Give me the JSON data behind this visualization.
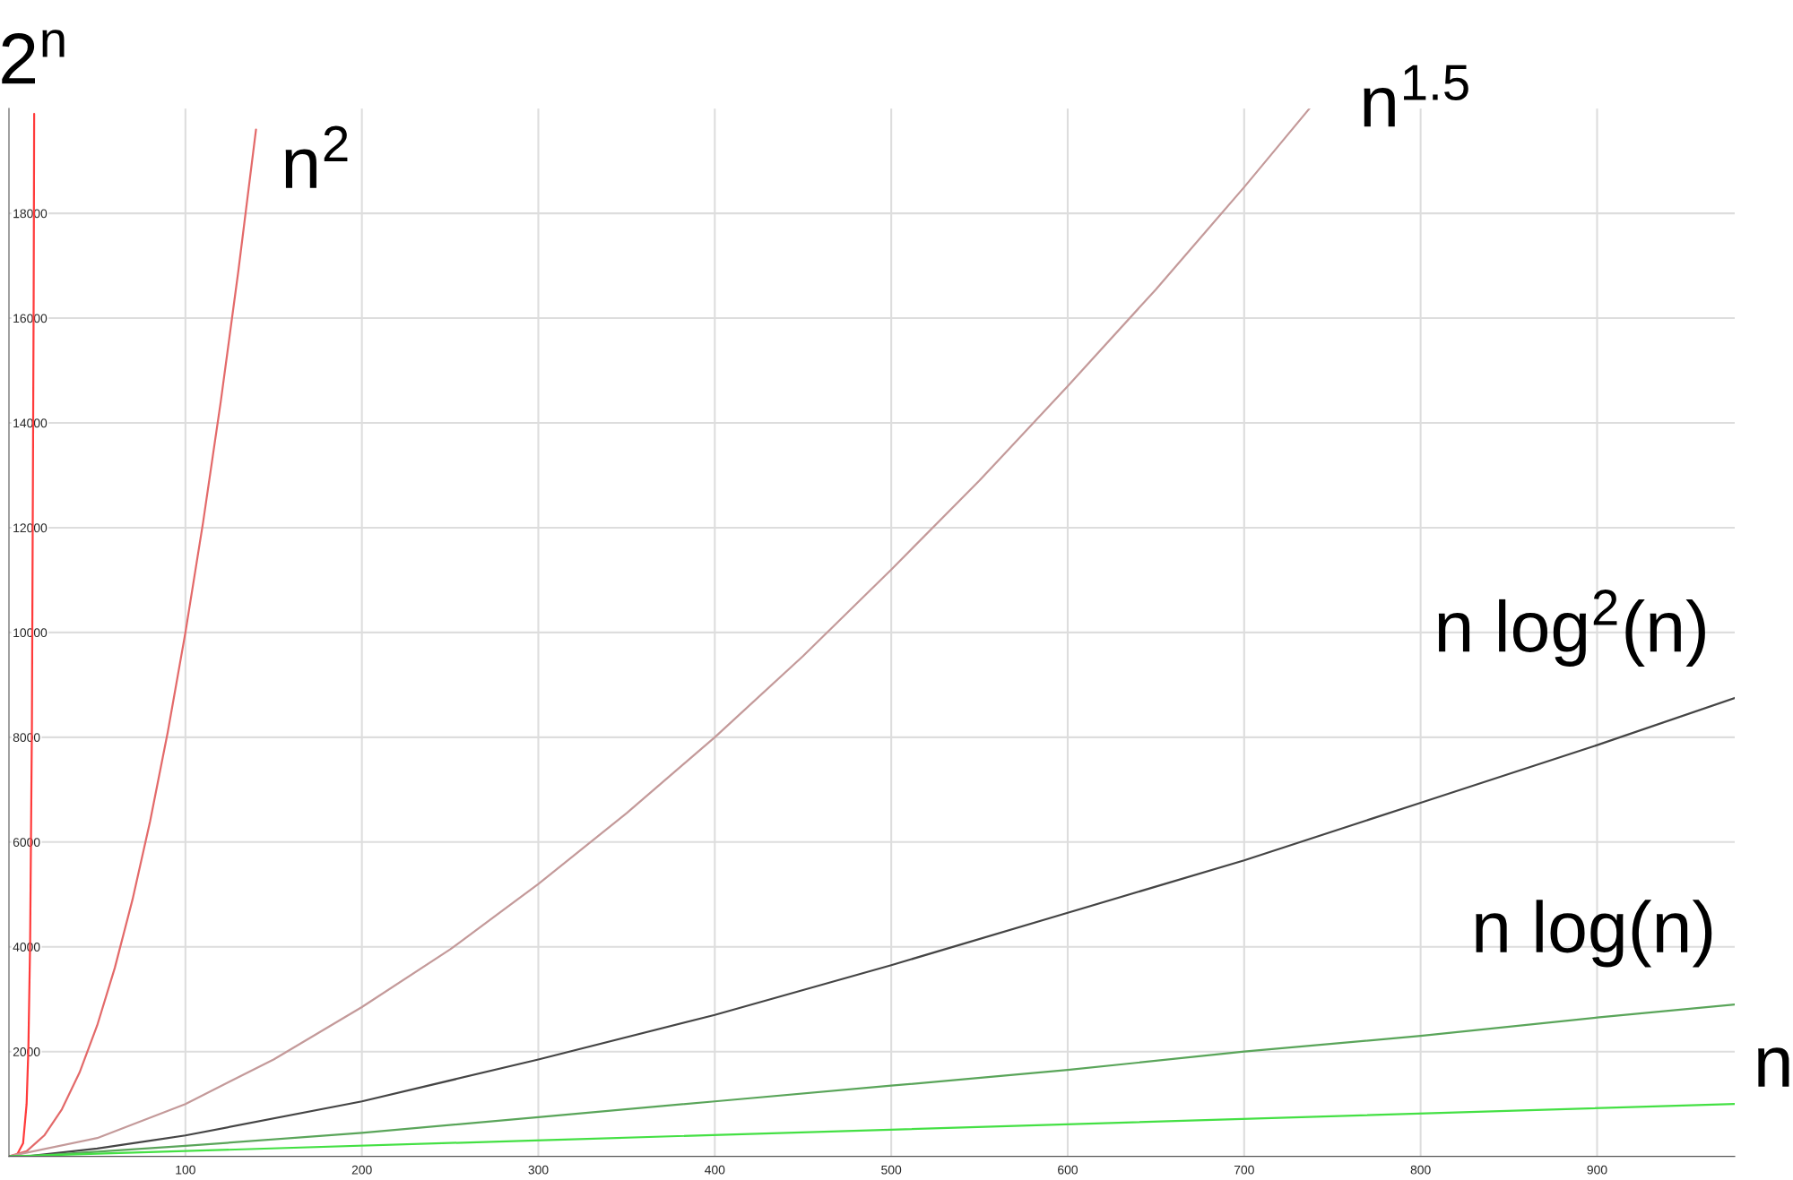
{
  "chart_data": {
    "type": "line",
    "xlim": [
      0,
      978
    ],
    "ylim": [
      0,
      20000
    ],
    "xticks": [
      100,
      200,
      300,
      400,
      500,
      600,
      700,
      800,
      900
    ],
    "yticks": [
      2000,
      4000,
      6000,
      8000,
      10000,
      12000,
      14000,
      16000,
      18000
    ],
    "grid": true,
    "legend": false,
    "marker": "none",
    "line_style": "solid",
    "series": [
      {
        "name": "2$^{n}$",
        "color": "#ff3b3b",
        "x": [
          0,
          4,
          8,
          10,
          11,
          12,
          13,
          14,
          14.28
        ],
        "values": [
          0,
          0,
          250,
          1000,
          2050,
          4100,
          8200,
          16400,
          19900
        ]
      },
      {
        "name": "n$^{2}$",
        "color": "#e36a6a",
        "x": [
          0,
          10,
          20,
          30,
          40,
          50,
          60,
          70,
          80,
          90,
          100,
          110,
          120,
          130,
          140
        ],
        "values": [
          0,
          100,
          400,
          900,
          1600,
          2500,
          3600,
          4900,
          6400,
          8100,
          10000,
          12100,
          14400,
          16900,
          19600
        ]
      },
      {
        "name": "n$^{1.5}$",
        "color": "#c49a9a",
        "x": [
          0,
          50,
          100,
          150,
          200,
          250,
          300,
          350,
          400,
          450,
          500,
          550,
          600,
          650,
          700,
          737
        ],
        "values": [
          0,
          350,
          1000,
          1850,
          2850,
          3950,
          5200,
          6550,
          8000,
          9550,
          11200,
          12900,
          14700,
          16550,
          18500,
          20000
        ]
      },
      {
        "name": "n log$^{2}$(n)",
        "color": "#454545",
        "x": [
          1,
          10,
          50,
          100,
          200,
          300,
          400,
          500,
          600,
          700,
          800,
          900,
          978
        ],
        "values": [
          0,
          0,
          150,
          400,
          1050,
          1850,
          2700,
          3650,
          4650,
          5650,
          6750,
          7850,
          8750
        ]
      },
      {
        "name": "n log(n)",
        "color": "#5aa55a",
        "x": [
          1,
          10,
          100,
          200,
          300,
          400,
          500,
          600,
          700,
          800,
          900,
          978
        ],
        "values": [
          0,
          0,
          200,
          450,
          750,
          1050,
          1350,
          1650,
          2000,
          2300,
          2650,
          2900
        ]
      },
      {
        "name": "n",
        "color": "#44e044",
        "x": [
          0,
          978
        ],
        "values": [
          0,
          1000
        ]
      }
    ]
  }
}
